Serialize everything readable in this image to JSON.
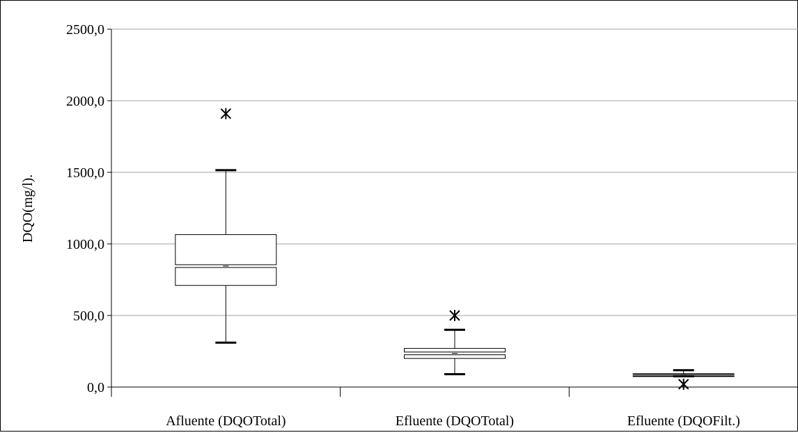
{
  "chart_data": {
    "type": "box",
    "ylabel": "DQO(mg/l).",
    "ylim": [
      0,
      2500
    ],
    "yticks": [
      0,
      500,
      1000,
      1500,
      2000,
      2500
    ],
    "ytick_labels": [
      "0,0",
      "500,0",
      "1000,0",
      "1500,0",
      "2000,0",
      "2500,0"
    ],
    "grid": "horizontal",
    "categories": [
      "Afluente (DQOTotal)",
      "Efluente (DQOTotal)",
      "Efluente (DQOFilt.)"
    ],
    "boxes": [
      {
        "whisker_low": 310,
        "q1": 710,
        "median": 845,
        "q3": 1065,
        "whisker_high": 1515,
        "outliers": [
          1910
        ]
      },
      {
        "whisker_low": 90,
        "q1": 200,
        "median": 235,
        "q3": 270,
        "whisker_high": 400,
        "outliers": [
          500
        ]
      },
      {
        "whisker_low": 75,
        "q1": 82,
        "median": 88,
        "q3": 93,
        "whisker_high": 118,
        "outliers": [
          20
        ]
      }
    ],
    "colors": {
      "axis": "#000000",
      "grid": "#a0a0a0",
      "box_fill": "#ffffff"
    }
  }
}
